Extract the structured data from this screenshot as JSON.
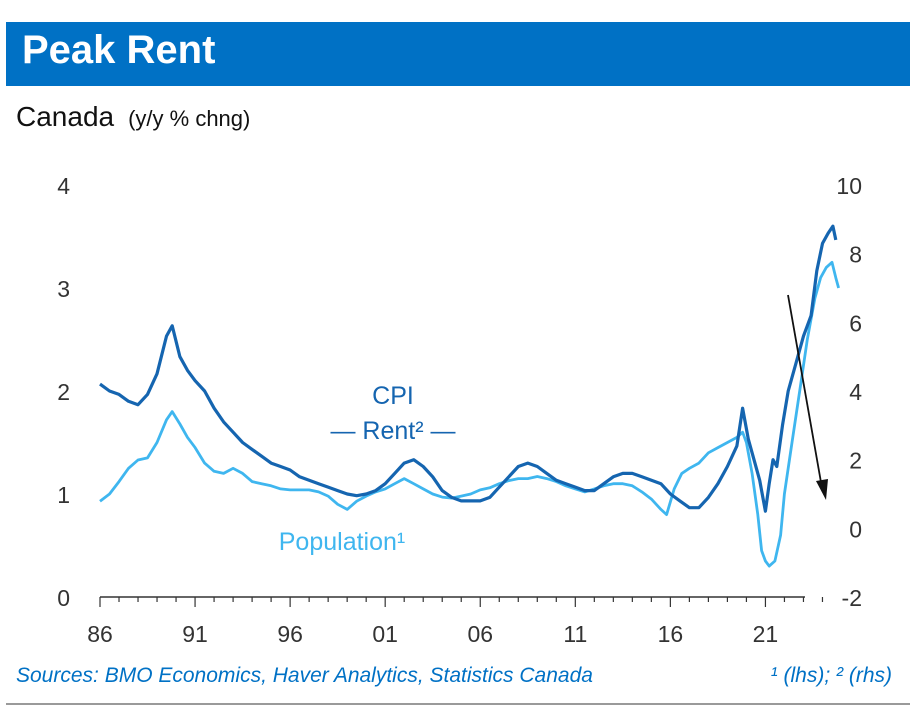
{
  "title": "Peak Rent",
  "subtitle": "Canada",
  "subtitle_units": "(y/y % chng)",
  "colors": {
    "header": "#0071c5",
    "cpi_rent": "#1565b0",
    "population": "#3fb6ef",
    "axis": "#333333",
    "arrow": "#111111"
  },
  "footer": {
    "sources": "Sources: BMO Economics, Haver Analytics, Statistics Canada",
    "note": "¹ (lhs); ² (rhs)"
  },
  "chart_data": {
    "type": "line",
    "x_ticks": [
      "86",
      "91",
      "96",
      "01",
      "06",
      "11",
      "16",
      "21"
    ],
    "x_tick_years": [
      1986,
      1991,
      1996,
      2001,
      2006,
      2011,
      2016,
      2021
    ],
    "xlim": [
      1986,
      2026.5
    ],
    "left_axis": {
      "ticks": [
        "0",
        "1",
        "2",
        "3",
        "4"
      ],
      "ylim": [
        0,
        4
      ]
    },
    "right_axis": {
      "ticks": [
        "-2",
        "0",
        "2",
        "4",
        "6",
        "8",
        "10"
      ],
      "ylim": [
        -2,
        10
      ]
    },
    "labels": {
      "cpi_line1": "CPI",
      "cpi_line2": "— Rent² —",
      "population": "Population¹"
    },
    "series": [
      {
        "name": "CPI — Rent",
        "axis": "right",
        "points": [
          [
            1986.0,
            4.2
          ],
          [
            1986.5,
            4.0
          ],
          [
            1987.0,
            3.9
          ],
          [
            1987.5,
            3.7
          ],
          [
            1988.0,
            3.6
          ],
          [
            1988.5,
            3.9
          ],
          [
            1989.0,
            4.5
          ],
          [
            1989.5,
            5.6
          ],
          [
            1989.8,
            5.9
          ],
          [
            1990.2,
            5.0
          ],
          [
            1990.6,
            4.6
          ],
          [
            1991.0,
            4.3
          ],
          [
            1991.5,
            4.0
          ],
          [
            1992.0,
            3.5
          ],
          [
            1992.5,
            3.1
          ],
          [
            1993.0,
            2.8
          ],
          [
            1993.5,
            2.5
          ],
          [
            1994.0,
            2.3
          ],
          [
            1994.5,
            2.1
          ],
          [
            1995.0,
            1.9
          ],
          [
            1995.5,
            1.8
          ],
          [
            1996.0,
            1.7
          ],
          [
            1996.5,
            1.5
          ],
          [
            1997.0,
            1.4
          ],
          [
            1997.5,
            1.3
          ],
          [
            1998.0,
            1.2
          ],
          [
            1998.5,
            1.1
          ],
          [
            1999.0,
            1.0
          ],
          [
            1999.5,
            0.95
          ],
          [
            2000.0,
            1.0
          ],
          [
            2000.5,
            1.1
          ],
          [
            2001.0,
            1.3
          ],
          [
            2001.5,
            1.6
          ],
          [
            2002.0,
            1.9
          ],
          [
            2002.5,
            2.0
          ],
          [
            2003.0,
            1.8
          ],
          [
            2003.5,
            1.5
          ],
          [
            2004.0,
            1.1
          ],
          [
            2004.5,
            0.9
          ],
          [
            2005.0,
            0.8
          ],
          [
            2005.5,
            0.8
          ],
          [
            2006.0,
            0.8
          ],
          [
            2006.5,
            0.9
          ],
          [
            2007.0,
            1.2
          ],
          [
            2007.5,
            1.5
          ],
          [
            2008.0,
            1.8
          ],
          [
            2008.5,
            1.9
          ],
          [
            2009.0,
            1.8
          ],
          [
            2009.5,
            1.6
          ],
          [
            2010.0,
            1.4
          ],
          [
            2010.5,
            1.3
          ],
          [
            2011.0,
            1.2
          ],
          [
            2011.5,
            1.1
          ],
          [
            2012.0,
            1.1
          ],
          [
            2012.5,
            1.3
          ],
          [
            2013.0,
            1.5
          ],
          [
            2013.5,
            1.6
          ],
          [
            2014.0,
            1.6
          ],
          [
            2014.5,
            1.5
          ],
          [
            2015.0,
            1.4
          ],
          [
            2015.5,
            1.3
          ],
          [
            2016.0,
            1.0
          ],
          [
            2016.5,
            0.8
          ],
          [
            2017.0,
            0.6
          ],
          [
            2017.5,
            0.6
          ],
          [
            2018.0,
            0.9
          ],
          [
            2018.5,
            1.3
          ],
          [
            2019.0,
            1.8
          ],
          [
            2019.5,
            2.4
          ],
          [
            2019.8,
            3.5
          ],
          [
            2020.1,
            2.6
          ],
          [
            2020.4,
            2.0
          ],
          [
            2020.7,
            1.4
          ],
          [
            2021.0,
            0.5
          ],
          [
            2021.2,
            1.3
          ],
          [
            2021.4,
            2.0
          ],
          [
            2021.6,
            1.8
          ],
          [
            2021.9,
            3.0
          ],
          [
            2022.2,
            4.0
          ],
          [
            2022.6,
            4.8
          ],
          [
            2023.0,
            5.6
          ],
          [
            2023.4,
            6.2
          ],
          [
            2023.7,
            7.5
          ],
          [
            2024.0,
            8.3
          ],
          [
            2024.3,
            8.6
          ],
          [
            2024.55,
            8.8
          ],
          [
            2024.7,
            8.4
          ]
        ]
      },
      {
        "name": "Population",
        "axis": "left",
        "points": [
          [
            1986.0,
            0.93
          ],
          [
            1986.5,
            1.0
          ],
          [
            1987.0,
            1.12
          ],
          [
            1987.5,
            1.25
          ],
          [
            1988.0,
            1.33
          ],
          [
            1988.5,
            1.35
          ],
          [
            1989.0,
            1.5
          ],
          [
            1989.5,
            1.72
          ],
          [
            1989.8,
            1.8
          ],
          [
            1990.2,
            1.68
          ],
          [
            1990.6,
            1.55
          ],
          [
            1991.0,
            1.45
          ],
          [
            1991.5,
            1.3
          ],
          [
            1992.0,
            1.22
          ],
          [
            1992.5,
            1.2
          ],
          [
            1993.0,
            1.25
          ],
          [
            1993.5,
            1.2
          ],
          [
            1994.0,
            1.12
          ],
          [
            1994.5,
            1.1
          ],
          [
            1995.0,
            1.08
          ],
          [
            1995.5,
            1.05
          ],
          [
            1996.0,
            1.04
          ],
          [
            1996.5,
            1.04
          ],
          [
            1997.0,
            1.04
          ],
          [
            1997.5,
            1.02
          ],
          [
            1998.0,
            0.98
          ],
          [
            1998.5,
            0.9
          ],
          [
            1999.0,
            0.85
          ],
          [
            1999.5,
            0.93
          ],
          [
            2000.0,
            0.98
          ],
          [
            2000.5,
            1.02
          ],
          [
            2001.0,
            1.05
          ],
          [
            2001.5,
            1.1
          ],
          [
            2002.0,
            1.15
          ],
          [
            2002.5,
            1.1
          ],
          [
            2003.0,
            1.05
          ],
          [
            2003.5,
            1.0
          ],
          [
            2004.0,
            0.97
          ],
          [
            2004.5,
            0.96
          ],
          [
            2005.0,
            0.98
          ],
          [
            2005.5,
            1.0
          ],
          [
            2006.0,
            1.04
          ],
          [
            2006.5,
            1.06
          ],
          [
            2007.0,
            1.1
          ],
          [
            2007.5,
            1.13
          ],
          [
            2008.0,
            1.15
          ],
          [
            2008.5,
            1.15
          ],
          [
            2009.0,
            1.17
          ],
          [
            2009.5,
            1.15
          ],
          [
            2010.0,
            1.12
          ],
          [
            2010.5,
            1.08
          ],
          [
            2011.0,
            1.05
          ],
          [
            2011.5,
            1.02
          ],
          [
            2012.0,
            1.05
          ],
          [
            2012.5,
            1.08
          ],
          [
            2013.0,
            1.1
          ],
          [
            2013.5,
            1.1
          ],
          [
            2014.0,
            1.08
          ],
          [
            2014.5,
            1.02
          ],
          [
            2015.0,
            0.95
          ],
          [
            2015.5,
            0.85
          ],
          [
            2015.8,
            0.8
          ],
          [
            2016.2,
            1.05
          ],
          [
            2016.6,
            1.2
          ],
          [
            2017.0,
            1.25
          ],
          [
            2017.5,
            1.3
          ],
          [
            2018.0,
            1.4
          ],
          [
            2018.5,
            1.45
          ],
          [
            2019.0,
            1.5
          ],
          [
            2019.5,
            1.55
          ],
          [
            2019.8,
            1.6
          ],
          [
            2020.0,
            1.5
          ],
          [
            2020.3,
            1.2
          ],
          [
            2020.6,
            0.8
          ],
          [
            2020.8,
            0.45
          ],
          [
            2021.0,
            0.35
          ],
          [
            2021.2,
            0.3
          ],
          [
            2021.5,
            0.35
          ],
          [
            2021.8,
            0.6
          ],
          [
            2022.0,
            1.0
          ],
          [
            2022.4,
            1.5
          ],
          [
            2022.8,
            2.0
          ],
          [
            2023.2,
            2.5
          ],
          [
            2023.6,
            2.9
          ],
          [
            2023.9,
            3.1
          ],
          [
            2024.2,
            3.2
          ],
          [
            2024.5,
            3.25
          ],
          [
            2024.7,
            3.1
          ],
          [
            2024.85,
            3.0
          ]
        ]
      }
    ],
    "annotation": "down-arrow from the end of the series"
  }
}
